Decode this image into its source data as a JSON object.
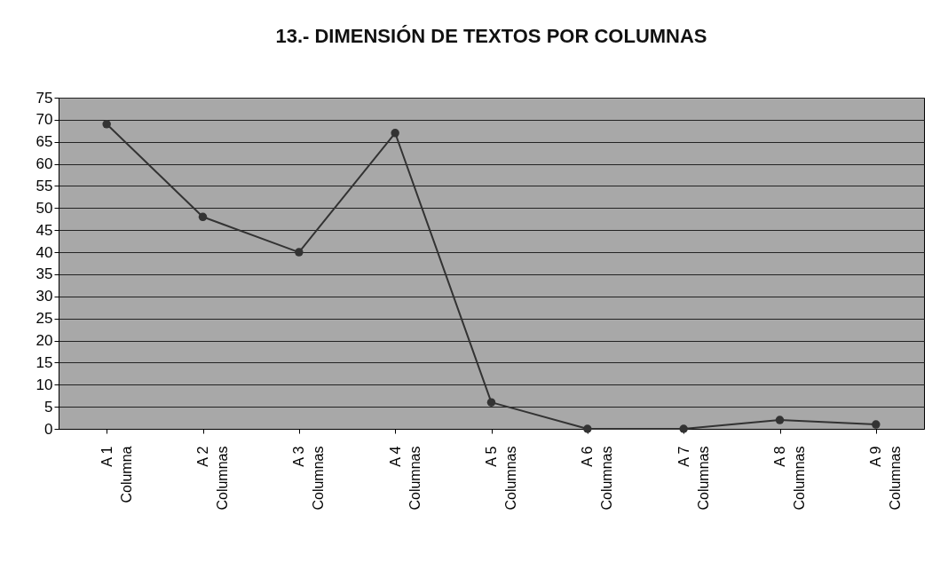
{
  "chart_data": {
    "type": "line",
    "title": "13.- DIMENSIÓN DE TEXTOS POR COLUMNAS",
    "categories": [
      "A 1\nColumna",
      "A 2\nColumnas",
      "A 3\nColumnas",
      "A 4\nColumnas",
      "A 5\nColumnas",
      "A 6\nColumnas",
      "A 7\nColumnas",
      "A 8\nColumnas",
      "A 9\nColumnas"
    ],
    "series": [
      {
        "color": "#333333",
        "values": [
          69,
          48,
          40,
          67,
          6,
          0,
          0,
          2,
          1
        ]
      }
    ],
    "ylim": [
      0,
      75
    ],
    "yticks": [
      0,
      5,
      10,
      15,
      20,
      25,
      30,
      35,
      40,
      45,
      50,
      55,
      60,
      65,
      70,
      75
    ],
    "grid": "y",
    "marker": "circle",
    "line_style": "solid",
    "legend": false
  }
}
